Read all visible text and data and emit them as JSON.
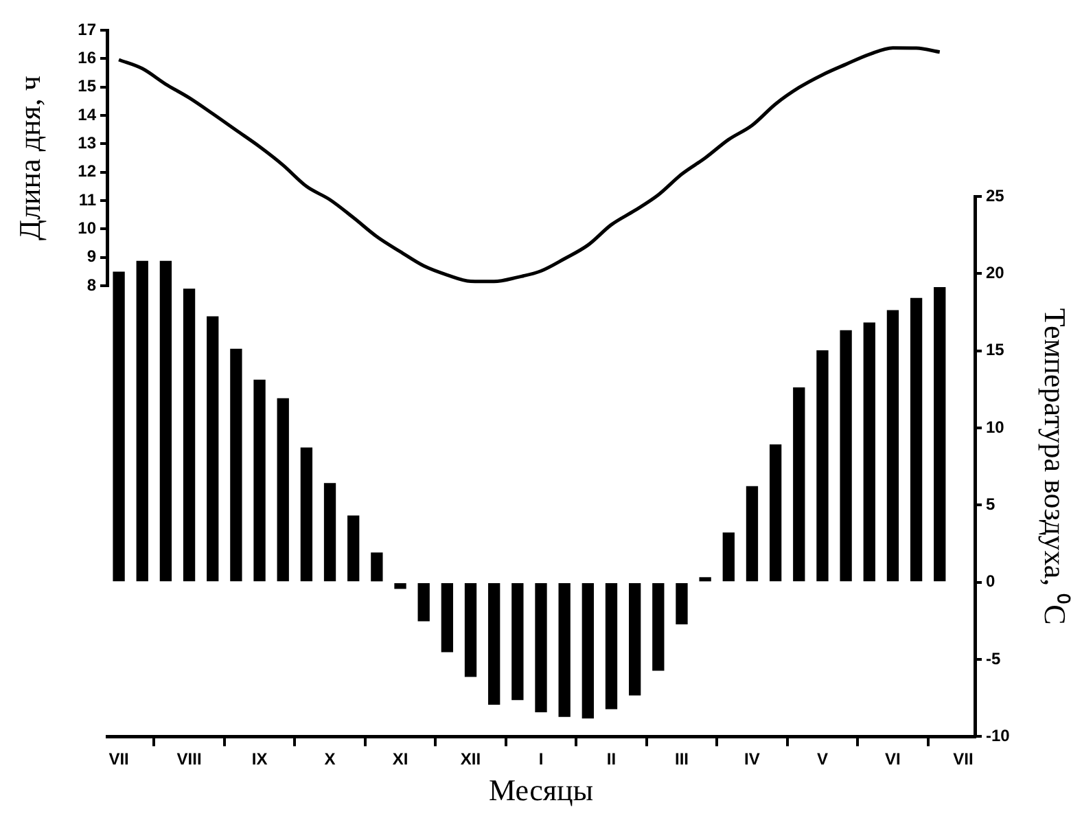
{
  "chart_data": [
    {
      "type": "line",
      "ylabel": "Длина дня, ч",
      "categories": [
        null,
        null,
        null,
        null,
        null,
        null,
        null,
        null,
        null,
        null,
        null,
        null,
        null,
        null,
        null,
        null,
        null,
        null,
        null,
        null,
        null,
        null,
        null,
        null,
        null,
        null,
        null,
        null,
        null,
        null,
        null,
        null,
        null,
        null,
        null,
        null,
        null
      ],
      "values": [
        15.96,
        15.65,
        15.1,
        14.62,
        14.06,
        13.48,
        12.9,
        12.25,
        11.5,
        11.03,
        10.4,
        9.73,
        9.2,
        8.7,
        8.38,
        8.16,
        8.15,
        8.3,
        8.52,
        8.95,
        9.43,
        10.15,
        10.65,
        11.2,
        11.93,
        12.5,
        13.15,
        13.65,
        14.4,
        14.98,
        15.43,
        15.8,
        16.15,
        16.38,
        16.37,
        16.23,
        null
      ],
      "color": "#000000",
      "ylim": [
        8,
        17
      ],
      "yticks": [
        8,
        9,
        10,
        11,
        12,
        13,
        14,
        15,
        16,
        17
      ],
      "tick_labels": "y",
      "grid": false,
      "marker": "none",
      "line_style": "solid"
    },
    {
      "type": "bar",
      "xlabel": "Месяцы",
      "y2label": "Температура воздуха, ⁰C",
      "categories": [
        "VII",
        null,
        null,
        "VIII",
        null,
        null,
        "IX",
        null,
        null,
        "X",
        null,
        null,
        "XI",
        null,
        null,
        "XII",
        null,
        null,
        "I",
        null,
        null,
        "II",
        null,
        null,
        "III",
        null,
        null,
        "IV",
        null,
        null,
        "V",
        null,
        null,
        "VI",
        null,
        null,
        "VII"
      ],
      "series": [
        {
          "axis": "y2",
          "color": "#000000",
          "values": [
            20.1,
            20.8,
            20.8,
            19.0,
            17.2,
            15.1,
            13.1,
            11.9,
            8.7,
            6.4,
            4.3,
            1.9,
            -0.4,
            -2.5,
            -4.5,
            -6.1,
            -7.9,
            -7.6,
            -8.4,
            -8.7,
            -8.8,
            -8.2,
            -7.3,
            -5.7,
            -2.7,
            0.3,
            3.2,
            6.2,
            8.9,
            12.6,
            15.0,
            16.3,
            16.8,
            17.6,
            18.4,
            19.1,
            null
          ]
        }
      ],
      "y2lim": [
        -10,
        25
      ],
      "y2ticks": [
        -10,
        -5,
        0,
        5,
        10,
        15,
        20,
        25
      ],
      "grid": false
    }
  ]
}
